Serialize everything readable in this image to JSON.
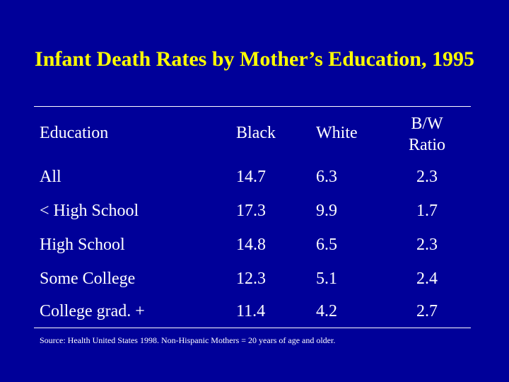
{
  "title": "Infant Death Rates by Mother’s Education, 1995",
  "table": {
    "headers": {
      "education": "Education",
      "black": "Black",
      "white": "White",
      "ratio_line1": "B/W",
      "ratio_line2": "Ratio"
    },
    "rows": [
      {
        "education": "All",
        "black": "14.7",
        "white": "6.3",
        "ratio": "2.3"
      },
      {
        "education": "< High School",
        "black": "17.3",
        "white": "9.9",
        "ratio": "1.7"
      },
      {
        "education": "High School",
        "black": "14.8",
        "white": "6.5",
        "ratio": "2.3"
      },
      {
        "education": "Some College",
        "black": "12.3",
        "white": "5.1",
        "ratio": "2.4"
      },
      {
        "education": "College grad. +",
        "black": "11.4",
        "white": "4.2",
        "ratio": "2.7"
      }
    ]
  },
  "source": "Source: Health United States 1998. Non-Hispanic Mothers = 20 years of age and older.",
  "colors": {
    "background": "#000099",
    "title": "#ffff00",
    "text": "#ffffff"
  }
}
